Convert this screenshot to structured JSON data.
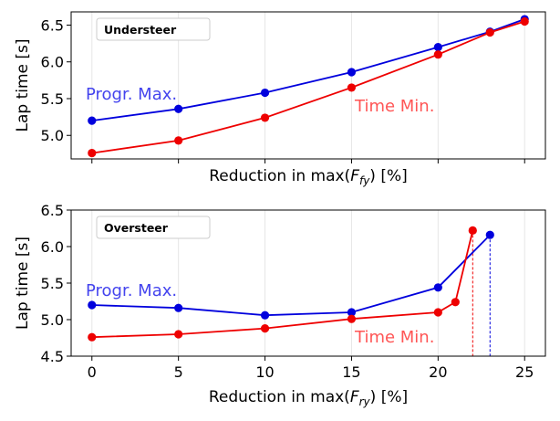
{
  "colors": {
    "blue": "#0000dd",
    "red": "#ee0000",
    "blue_label": "#4444ee",
    "red_label": "#ff5555",
    "grid": "#e6e6e6"
  },
  "chart_data": [
    {
      "type": "line",
      "title": "",
      "box_label": "Understeer",
      "xlabel_prefix": "Reduction in max(",
      "xlabel_var": "F",
      "xlabel_sub": "fy",
      "xlabel_suffix": ") [%]",
      "ylabel": "Lap time [s]",
      "xlim": [
        -1.2,
        26.2
      ],
      "ylim": [
        4.68,
        6.68
      ],
      "xticks": [
        0,
        5,
        10,
        15,
        20,
        25
      ],
      "xtick_labels_visible": false,
      "yticks": [
        5.0,
        5.5,
        6.0,
        6.5
      ],
      "ytick_labels": [
        "5.0",
        "5.5",
        "6.0",
        "6.5"
      ],
      "grid": "vertical",
      "series": [
        {
          "name": "Progr. Max.",
          "color": "#0000dd",
          "x": [
            0,
            5,
            10,
            15,
            20,
            23,
            25
          ],
          "y": [
            5.2,
            5.36,
            5.58,
            5.86,
            6.2,
            6.41,
            6.58
          ]
        },
        {
          "name": "Time Min.",
          "color": "#ee0000",
          "x": [
            0,
            5,
            10,
            15,
            20,
            23,
            25
          ],
          "y": [
            4.76,
            4.93,
            5.24,
            5.65,
            6.1,
            6.4,
            6.55
          ]
        }
      ]
    },
    {
      "type": "line",
      "title": "",
      "box_label": "Oversteer",
      "xlabel_prefix": "Reduction in max(",
      "xlabel_var": "F",
      "xlabel_sub": "ry",
      "xlabel_suffix": ") [%]",
      "ylabel": "Lap time [s]",
      "xlim": [
        -1.2,
        26.2
      ],
      "ylim": [
        4.5,
        6.5
      ],
      "xticks": [
        0,
        5,
        10,
        15,
        20,
        25
      ],
      "xtick_labels": [
        "0",
        "5",
        "10",
        "15",
        "20",
        "25"
      ],
      "xtick_labels_visible": true,
      "yticks": [
        4.5,
        5.0,
        5.5,
        6.0,
        6.5
      ],
      "ytick_labels": [
        "4.5",
        "5.0",
        "5.5",
        "6.0",
        "6.5"
      ],
      "grid": "vertical",
      "series": [
        {
          "name": "Progr. Max.",
          "color": "#0000dd",
          "x": [
            0,
            5,
            10,
            15,
            20,
            23
          ],
          "y": [
            5.2,
            5.16,
            5.06,
            5.1,
            5.44,
            6.16
          ]
        },
        {
          "name": "Time Min.",
          "color": "#ee0000",
          "x": [
            0,
            5,
            10,
            15,
            20,
            21,
            22
          ],
          "y": [
            4.76,
            4.8,
            4.88,
            5.01,
            5.1,
            5.24,
            6.22
          ]
        }
      ],
      "vlines": [
        {
          "series": "Time Min.",
          "x": 22
        },
        {
          "series": "Progr. Max.",
          "x": 23
        }
      ]
    }
  ]
}
